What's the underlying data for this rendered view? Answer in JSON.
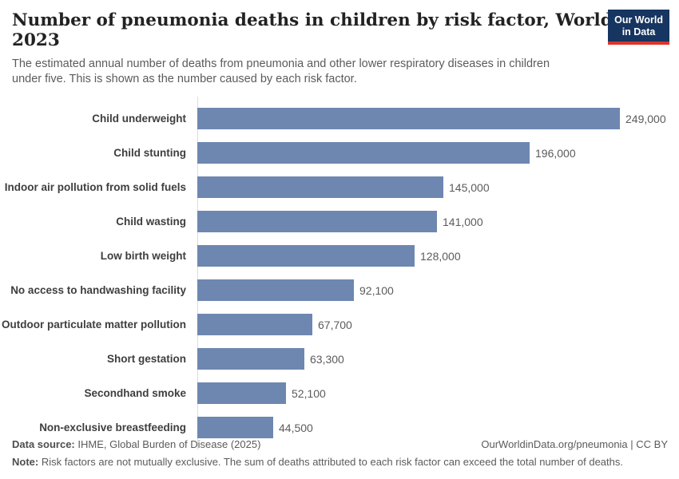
{
  "header": {
    "title": "Number of pneumonia deaths in children by risk factor, World, 2023",
    "subtitle": "The estimated annual number of deaths from pneumonia and other lower respiratory diseases in children under five. This is shown as the number caused by each risk factor.",
    "logo": {
      "line1": "Our World",
      "line2": "in Data"
    }
  },
  "chart_data": {
    "type": "bar",
    "orientation": "horizontal",
    "title": "Number of pneumonia deaths in children by risk factor, World, 2023",
    "xlabel": "",
    "ylabel": "",
    "xlim": [
      0,
      249000
    ],
    "grid": false,
    "legend": "none",
    "categories": [
      "Child underweight",
      "Child stunting",
      "Indoor air pollution from solid fuels",
      "Child wasting",
      "Low birth weight",
      "No access to handwashing facility",
      "Outdoor particulate matter pollution",
      "Short gestation",
      "Secondhand smoke",
      "Non-exclusive breastfeeding"
    ],
    "values": [
      249000,
      196000,
      145000,
      141000,
      128000,
      92100,
      67700,
      63300,
      52100,
      44500
    ],
    "value_labels": [
      "249,000",
      "196,000",
      "145,000",
      "141,000",
      "128,000",
      "92,100",
      "67,700",
      "63,300",
      "52,100",
      "44,500"
    ],
    "bar_color": "#6d87b0"
  },
  "footer": {
    "data_source_label": "Data source:",
    "data_source_value": "IHME, Global Burden of Disease (2025)",
    "credit": "OurWorldinData.org/pneumonia | CC BY",
    "note_label": "Note:",
    "note_value": "Risk factors are not mutually exclusive. The sum of deaths attributed to each risk factor can exceed the total number of deaths."
  },
  "colors": {
    "bar": "#6d87b0",
    "axis": "#dcdcdc",
    "logo_bg": "#163560",
    "logo_accent": "#dc352b"
  }
}
